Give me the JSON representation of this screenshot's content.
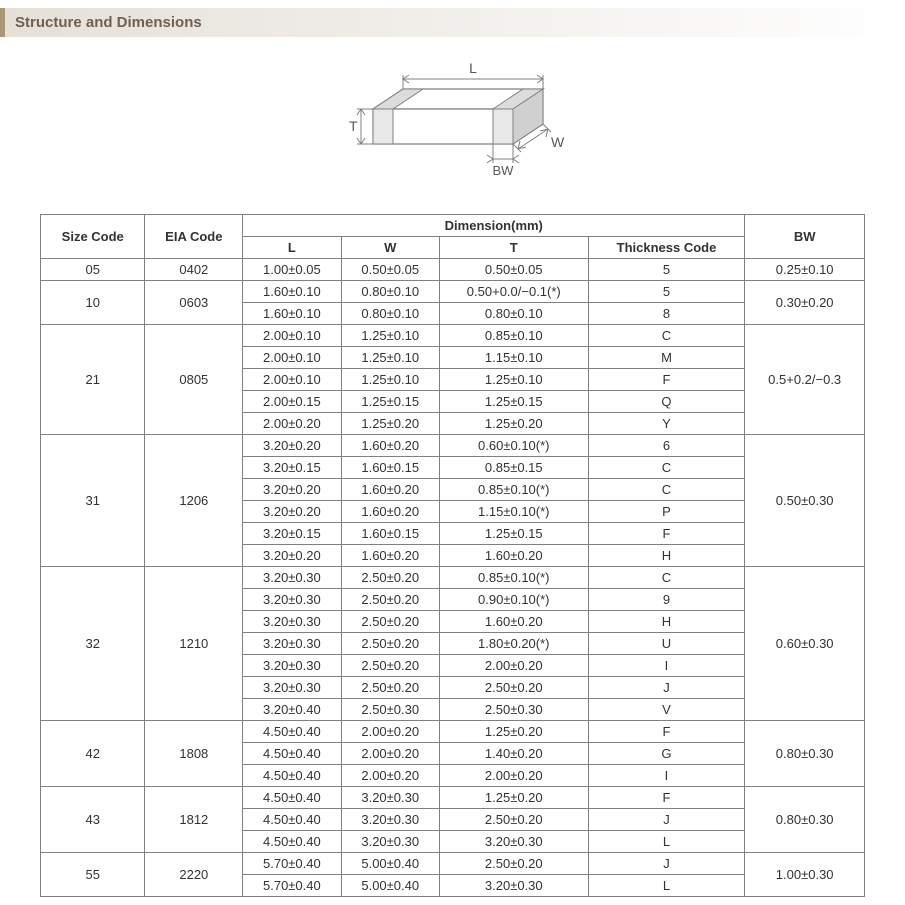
{
  "section_title": "Structure and Dimensions",
  "diagram_labels": {
    "L": "L",
    "W": "W",
    "T": "T",
    "BW": "BW"
  },
  "diagram": {
    "stroke": "#808080",
    "fill": "#ffffff",
    "text_color": "#595959",
    "font_size": 14
  },
  "table": {
    "border_color": "#808080",
    "font_size": 13,
    "header_font_weight": "bold",
    "cell_padding": "3px 6px",
    "text_align": "center",
    "headers": {
      "size_code": "Size Code",
      "eia_code": "EIA Code",
      "dimension_group": "Dimension(mm)",
      "L": "L",
      "W": "W",
      "T": "T",
      "thickness_code": "Thickness  Code",
      "BW": "BW"
    },
    "groups": [
      {
        "size_code": "05",
        "eia_code": "0402",
        "bw": "0.25±0.10",
        "rows": [
          {
            "L": "1.00±0.05",
            "W": "0.50±0.05",
            "T": "0.50±0.05",
            "tc": "5"
          }
        ]
      },
      {
        "size_code": "10",
        "eia_code": "0603",
        "bw": "0.30±0.20",
        "rows": [
          {
            "L": "1.60±0.10",
            "W": "0.80±0.10",
            "T": "0.50+0.0/−0.1(*)",
            "tc": "5"
          },
          {
            "L": "1.60±0.10",
            "W": "0.80±0.10",
            "T": "0.80±0.10",
            "tc": "8"
          }
        ]
      },
      {
        "size_code": "21",
        "eia_code": "0805",
        "bw": "0.5+0.2/−0.3",
        "rows": [
          {
            "L": "2.00±0.10",
            "W": "1.25±0.10",
            "T": "0.85±0.10",
            "tc": "C"
          },
          {
            "L": "2.00±0.10",
            "W": "1.25±0.10",
            "T": "1.15±0.10",
            "tc": "M"
          },
          {
            "L": "2.00±0.10",
            "W": "1.25±0.10",
            "T": "1.25±0.10",
            "tc": "F"
          },
          {
            "L": "2.00±0.15",
            "W": "1.25±0.15",
            "T": "1.25±0.15",
            "tc": "Q"
          },
          {
            "L": "2.00±0.20",
            "W": "1.25±0.20",
            "T": "1.25±0.20",
            "tc": "Y"
          }
        ]
      },
      {
        "size_code": "31",
        "eia_code": "1206",
        "bw": "0.50±0.30",
        "rows": [
          {
            "L": "3.20±0.20",
            "W": "1.60±0.20",
            "T": "0.60±0.10(*)",
            "tc": "6"
          },
          {
            "L": "3.20±0.15",
            "W": "1.60±0.15",
            "T": "0.85±0.15",
            "tc": "C"
          },
          {
            "L": "3.20±0.20",
            "W": "1.60±0.20",
            "T": "0.85±0.10(*)",
            "tc": "C"
          },
          {
            "L": "3.20±0.20",
            "W": "1.60±0.20",
            "T": "1.15±0.10(*)",
            "tc": "P"
          },
          {
            "L": "3.20±0.15",
            "W": "1.60±0.15",
            "T": "1.25±0.15",
            "tc": "F"
          },
          {
            "L": "3.20±0.20",
            "W": "1.60±0.20",
            "T": "1.60±0.20",
            "tc": "H"
          }
        ]
      },
      {
        "size_code": "32",
        "eia_code": "1210",
        "bw": "0.60±0.30",
        "rows": [
          {
            "L": "3.20±0.30",
            "W": "2.50±0.20",
            "T": "0.85±0.10(*)",
            "tc": "C"
          },
          {
            "L": "3.20±0.30",
            "W": "2.50±0.20",
            "T": "0.90±0.10(*)",
            "tc": "9"
          },
          {
            "L": "3.20±0.30",
            "W": "2.50±0.20",
            "T": "1.60±0.20",
            "tc": "H"
          },
          {
            "L": "3.20±0.30",
            "W": "2.50±0.20",
            "T": "1.80±0.20(*)",
            "tc": "U"
          },
          {
            "L": "3.20±0.30",
            "W": "2.50±0.20",
            "T": "2.00±0.20",
            "tc": "I"
          },
          {
            "L": "3.20±0.30",
            "W": "2.50±0.20",
            "T": "2.50±0.20",
            "tc": "J"
          },
          {
            "L": "3.20±0.40",
            "W": "2.50±0.30",
            "T": "2.50±0.30",
            "tc": "V"
          }
        ]
      },
      {
        "size_code": "42",
        "eia_code": "1808",
        "bw": "0.80±0.30",
        "rows": [
          {
            "L": "4.50±0.40",
            "W": "2.00±0.20",
            "T": "1.25±0.20",
            "tc": "F"
          },
          {
            "L": "4.50±0.40",
            "W": "2.00±0.20",
            "T": "1.40±0.20",
            "tc": "G"
          },
          {
            "L": "4.50±0.40",
            "W": "2.00±0.20",
            "T": "2.00±0.20",
            "tc": "I"
          }
        ]
      },
      {
        "size_code": "43",
        "eia_code": "1812",
        "bw": "0.80±0.30",
        "rows": [
          {
            "L": "4.50±0.40",
            "W": "3.20±0.30",
            "T": "1.25±0.20",
            "tc": "F"
          },
          {
            "L": "4.50±0.40",
            "W": "3.20±0.30",
            "T": "2.50±0.20",
            "tc": "J"
          },
          {
            "L": "4.50±0.40",
            "W": "3.20±0.30",
            "T": "3.20±0.30",
            "tc": "L"
          }
        ]
      },
      {
        "size_code": "55",
        "eia_code": "2220",
        "bw": "1.00±0.30",
        "rows": [
          {
            "L": "5.70±0.40",
            "W": "5.00±0.40",
            "T": "2.50±0.20",
            "tc": "J"
          },
          {
            "L": "5.70±0.40",
            "W": "5.00±0.40",
            "T": "3.20±0.30",
            "tc": "L"
          }
        ]
      }
    ]
  }
}
